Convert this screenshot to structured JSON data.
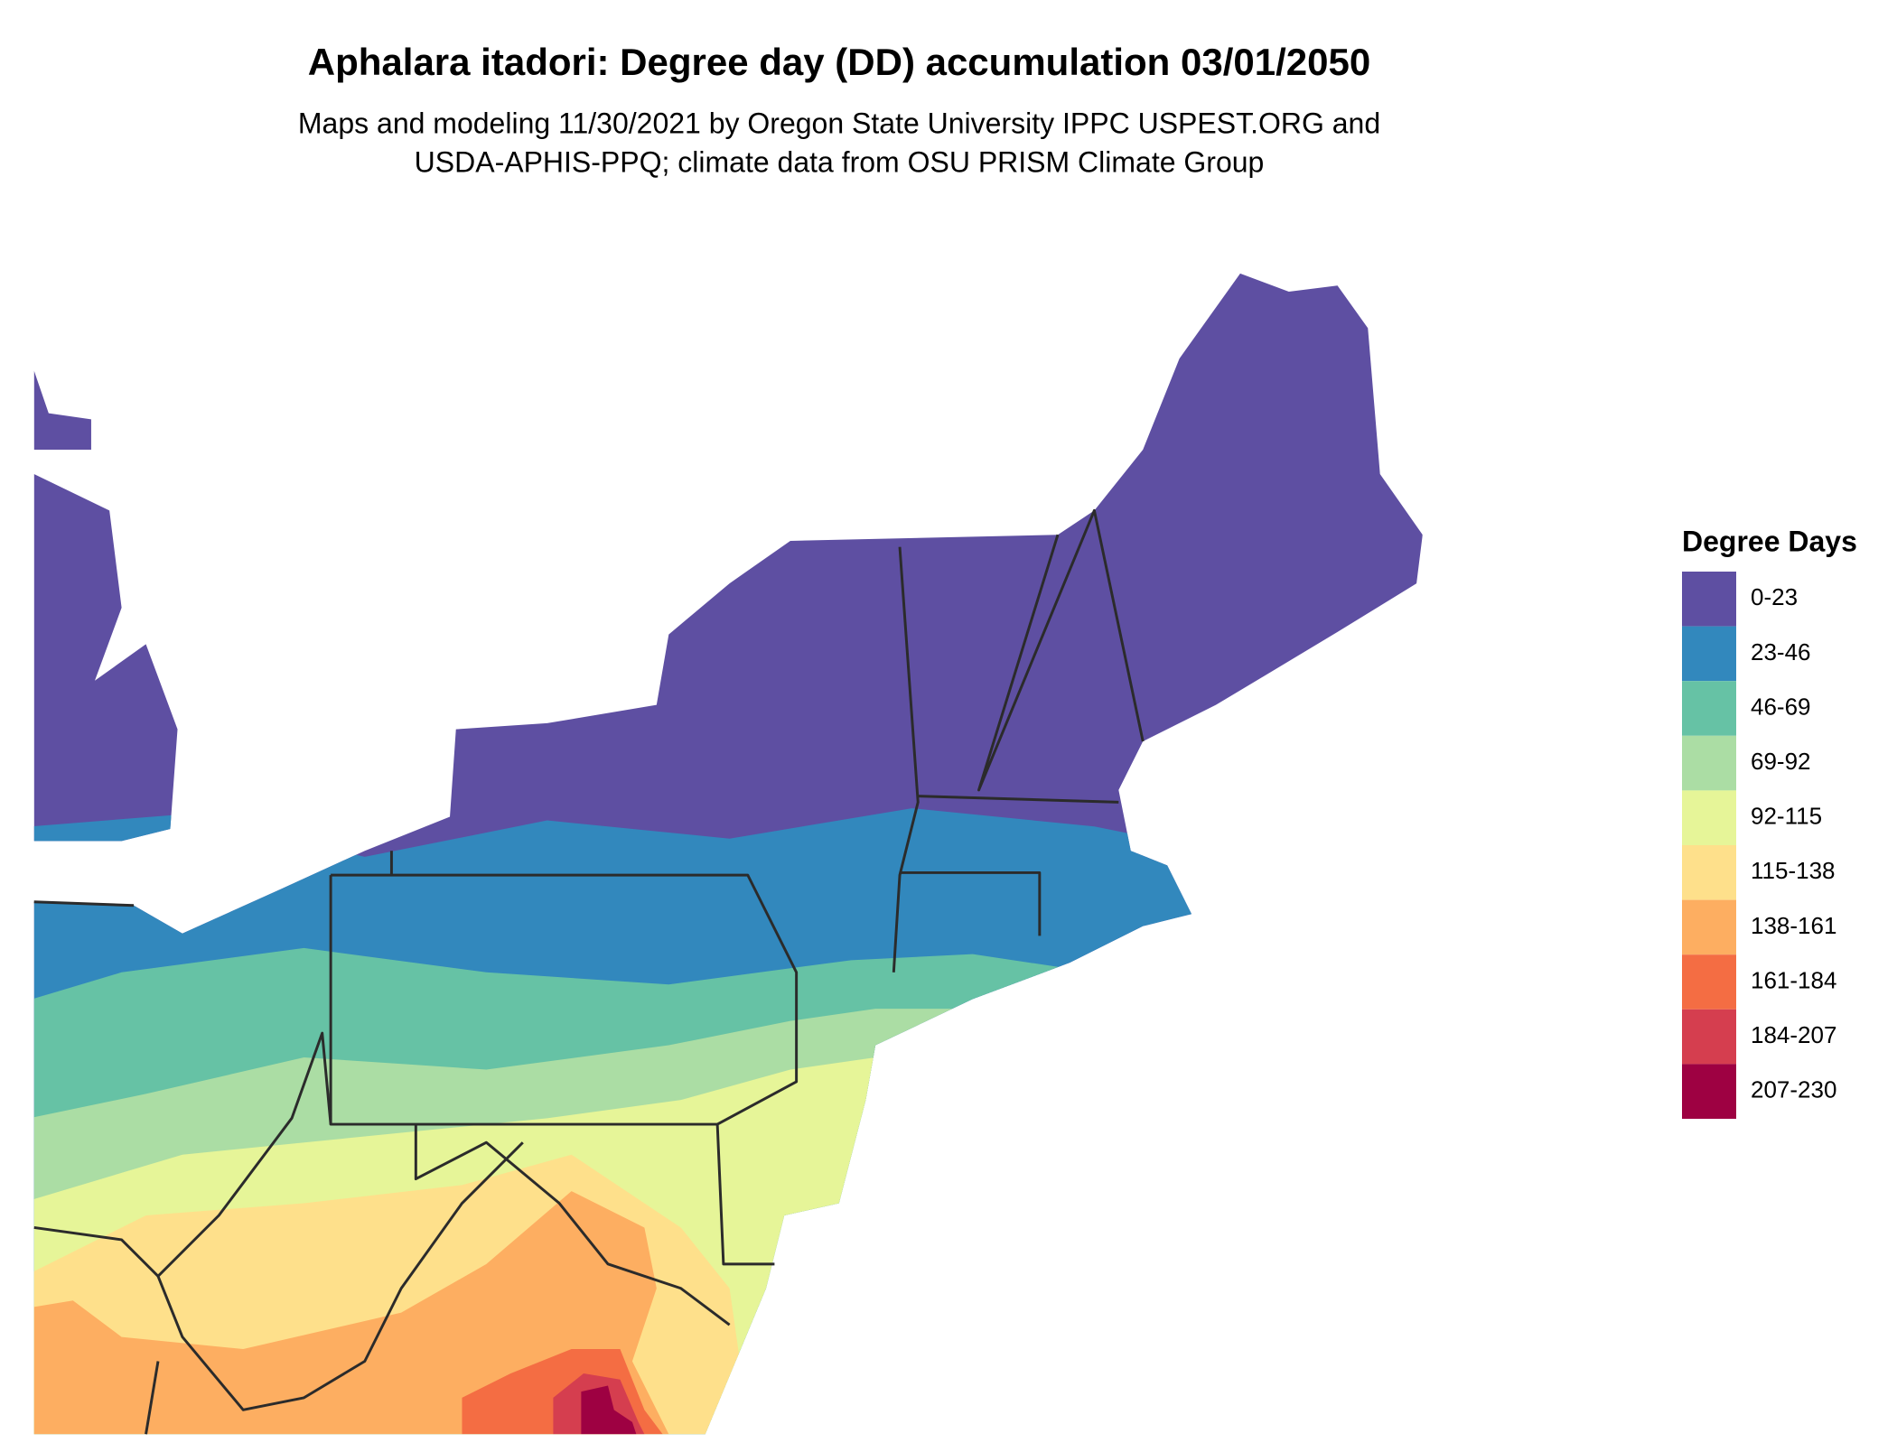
{
  "title": "Aphalara itadori: Degree day (DD) accumulation 03/01/2050",
  "subtitle": [
    "Maps and modeling 11/30/2021 by Oregon State University IPPC USPEST.ORG and",
    "USDA-APHIS-PPQ; climate data from OSU PRISM Climate Group"
  ],
  "legend": {
    "title": "Degree Days",
    "items": [
      {
        "label": "0-23",
        "color": "#5e4fa2"
      },
      {
        "label": "23-46",
        "color": "#3288bd"
      },
      {
        "label": "46-69",
        "color": "#66c2a5"
      },
      {
        "label": "69-92",
        "color": "#abdda4"
      },
      {
        "label": "92-115",
        "color": "#e6f598"
      },
      {
        "label": "115-138",
        "color": "#fee08b"
      },
      {
        "label": "138-161",
        "color": "#fdae61"
      },
      {
        "label": "161-184",
        "color": "#f46d43"
      },
      {
        "label": "184-207",
        "color": "#d53e4f"
      },
      {
        "label": "207-230",
        "color": "#9e0142"
      }
    ]
  }
}
